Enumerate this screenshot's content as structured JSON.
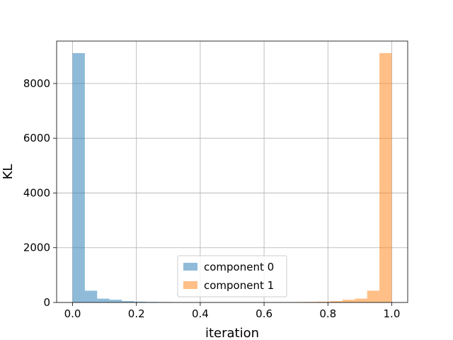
{
  "chart_data": {
    "type": "bar",
    "title": "",
    "xlabel": "iteration",
    "ylabel": "KL",
    "xlim": [
      -0.05,
      1.05
    ],
    "ylim": [
      0,
      9550
    ],
    "xticks": [
      0.0,
      0.2,
      0.4,
      0.6,
      0.8,
      1.0
    ],
    "xtick_labels": [
      "0.0",
      "0.2",
      "0.4",
      "0.6",
      "0.8",
      "1.0"
    ],
    "yticks": [
      0,
      2000,
      4000,
      6000,
      8000
    ],
    "ytick_labels": [
      "0",
      "2000",
      "4000",
      "6000",
      "8000"
    ],
    "grid": true,
    "legend_position": "bottom-center",
    "series": [
      {
        "name": "component 0",
        "color": "#1f77b4",
        "opacity": 0.5,
        "bins": [
          {
            "x0": 0.0,
            "x1": 0.0385,
            "value": 9110
          },
          {
            "x0": 0.0385,
            "x1": 0.077,
            "value": 430
          },
          {
            "x0": 0.077,
            "x1": 0.1155,
            "value": 140
          },
          {
            "x0": 0.1155,
            "x1": 0.154,
            "value": 100
          },
          {
            "x0": 0.154,
            "x1": 0.1925,
            "value": 50
          },
          {
            "x0": 0.1925,
            "x1": 0.231,
            "value": 30
          },
          {
            "x0": 0.231,
            "x1": 0.2695,
            "value": 20
          },
          {
            "x0": 0.2695,
            "x1": 0.308,
            "value": 15
          }
        ]
      },
      {
        "name": "component 1",
        "color": "#ff7f0e",
        "opacity": 0.5,
        "bins": [
          {
            "x0": 0.692,
            "x1": 0.7305,
            "value": 15
          },
          {
            "x0": 0.7305,
            "x1": 0.769,
            "value": 20
          },
          {
            "x0": 0.769,
            "x1": 0.8075,
            "value": 30
          },
          {
            "x0": 0.8075,
            "x1": 0.846,
            "value": 50
          },
          {
            "x0": 0.846,
            "x1": 0.8845,
            "value": 100
          },
          {
            "x0": 0.8845,
            "x1": 0.923,
            "value": 140
          },
          {
            "x0": 0.923,
            "x1": 0.9615,
            "value": 430
          },
          {
            "x0": 0.9615,
            "x1": 1.0,
            "value": 9110
          }
        ]
      }
    ]
  }
}
